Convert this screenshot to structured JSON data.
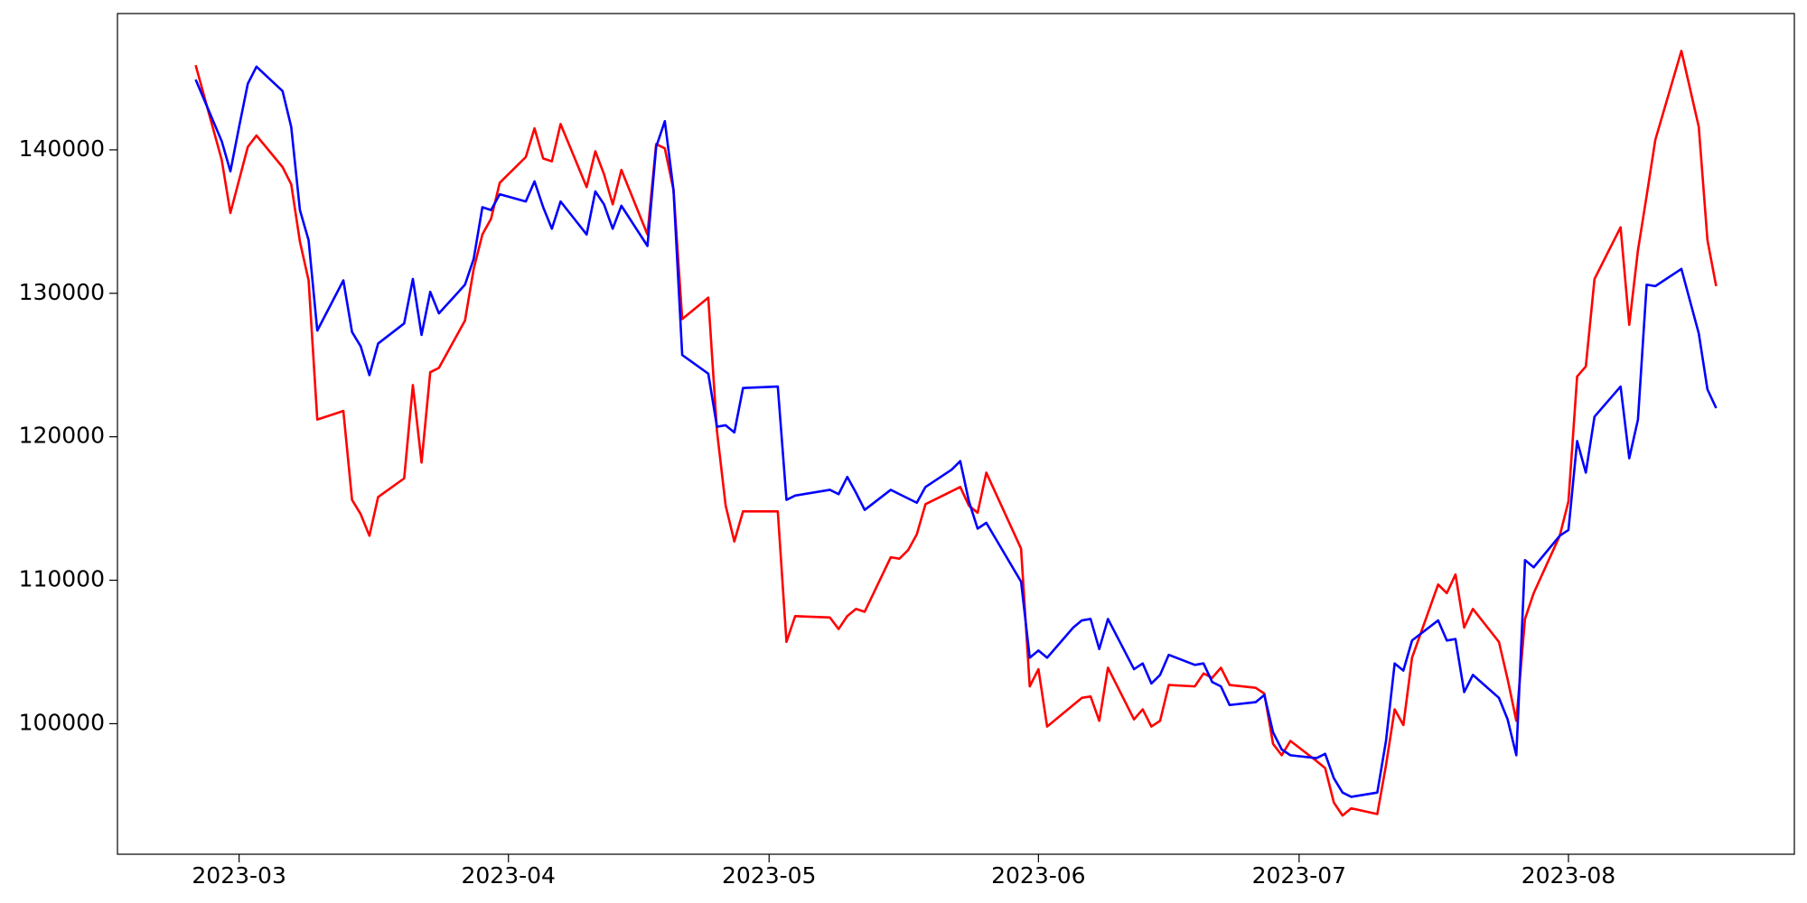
{
  "chart_data": {
    "type": "line",
    "x": [
      "2023-02-24",
      "2023-02-27",
      "2023-02-28",
      "2023-03-01",
      "2023-03-02",
      "2023-03-03",
      "2023-03-06",
      "2023-03-07",
      "2023-03-08",
      "2023-03-09",
      "2023-03-10",
      "2023-03-13",
      "2023-03-14",
      "2023-03-15",
      "2023-03-16",
      "2023-03-17",
      "2023-03-20",
      "2023-03-21",
      "2023-03-22",
      "2023-03-23",
      "2023-03-24",
      "2023-03-27",
      "2023-03-28",
      "2023-03-29",
      "2023-03-30",
      "2023-03-31",
      "2023-04-03",
      "2023-04-04",
      "2023-04-05",
      "2023-04-06",
      "2023-04-07",
      "2023-04-10",
      "2023-04-11",
      "2023-04-12",
      "2023-04-13",
      "2023-04-14",
      "2023-04-17",
      "2023-04-18",
      "2023-04-19",
      "2023-04-20",
      "2023-04-21",
      "2023-04-24",
      "2023-04-25",
      "2023-04-26",
      "2023-04-27",
      "2023-04-28",
      "2023-05-02",
      "2023-05-03",
      "2023-05-04",
      "2023-05-08",
      "2023-05-09",
      "2023-05-10",
      "2023-05-11",
      "2023-05-12",
      "2023-05-15",
      "2023-05-16",
      "2023-05-17",
      "2023-05-18",
      "2023-05-19",
      "2023-05-22",
      "2023-05-23",
      "2023-05-24",
      "2023-05-25",
      "2023-05-26",
      "2023-05-30",
      "2023-05-31",
      "2023-06-01",
      "2023-06-02",
      "2023-06-05",
      "2023-06-06",
      "2023-06-07",
      "2023-06-08",
      "2023-06-09",
      "2023-06-12",
      "2023-06-13",
      "2023-06-14",
      "2023-06-15",
      "2023-06-16",
      "2023-06-19",
      "2023-06-20",
      "2023-06-21",
      "2023-06-22",
      "2023-06-23",
      "2023-06-26",
      "2023-06-27",
      "2023-06-28",
      "2023-06-29",
      "2023-06-30",
      "2023-07-03",
      "2023-07-04",
      "2023-07-05",
      "2023-07-06",
      "2023-07-07",
      "2023-07-10",
      "2023-07-11",
      "2023-07-12",
      "2023-07-13",
      "2023-07-14",
      "2023-07-17",
      "2023-07-18",
      "2023-07-19",
      "2023-07-20",
      "2023-07-21",
      "2023-07-24",
      "2023-07-25",
      "2023-07-26",
      "2023-07-27",
      "2023-07-28",
      "2023-07-31",
      "2023-08-01",
      "2023-08-02",
      "2023-08-03",
      "2023-08-04",
      "2023-08-07",
      "2023-08-08",
      "2023-08-09",
      "2023-08-10",
      "2023-08-11",
      "2023-08-14",
      "2023-08-16",
      "2023-08-17",
      "2023-08-18"
    ],
    "series": [
      {
        "color": "#ff0000",
        "values": [
          145900,
          139300,
          135600,
          137900,
          140200,
          141000,
          138800,
          137600,
          133600,
          130900,
          121200,
          121800,
          115600,
          114600,
          113100,
          115800,
          117100,
          123600,
          118200,
          124500,
          124800,
          128100,
          131700,
          134100,
          135200,
          137700,
          139500,
          141500,
          139400,
          139200,
          141800,
          137400,
          139900,
          138300,
          136200,
          138600,
          134100,
          140400,
          140100,
          137200,
          128200,
          129700,
          120400,
          115200,
          112700,
          114800,
          114800,
          105700,
          107500,
          107400,
          106600,
          107500,
          108000,
          107800,
          111600,
          111500,
          112100,
          113200,
          115300,
          116200,
          116500,
          115200,
          114700,
          117500,
          112200,
          102600,
          103800,
          99800,
          101300,
          101800,
          101900,
          100200,
          103900,
          100300,
          101000,
          99800,
          100200,
          102700,
          102600,
          103500,
          103200,
          103900,
          102700,
          102500,
          102100,
          98600,
          97800,
          98800,
          97400,
          96900,
          94500,
          93600,
          94100,
          93700,
          97100,
          101000,
          99900,
          104600,
          109700,
          109100,
          110400,
          106700,
          108000,
          105700,
          103100,
          100200,
          107300,
          109100,
          113100,
          115500,
          124200,
          124900,
          131000,
          134600,
          127800,
          133000,
          136800,
          140700,
          146900,
          141600,
          133700,
          130500
        ]
      },
      {
        "color": "#0000ff",
        "values": [
          144900,
          140600,
          138500,
          141600,
          144600,
          145800,
          144100,
          141600,
          135800,
          133700,
          127400,
          130900,
          127300,
          126300,
          124300,
          126500,
          127900,
          131000,
          127100,
          130100,
          128600,
          130600,
          132400,
          136000,
          135800,
          136900,
          136400,
          137800,
          136000,
          134500,
          136400,
          134100,
          137100,
          136200,
          134500,
          136100,
          133300,
          140200,
          142000,
          137200,
          125700,
          124400,
          120700,
          120800,
          120300,
          123400,
          123500,
          115600,
          115900,
          116300,
          116000,
          117200,
          116100,
          114900,
          116300,
          116000,
          115700,
          115400,
          116500,
          117700,
          118300,
          115500,
          113600,
          114000,
          109900,
          104600,
          105100,
          104600,
          106700,
          107200,
          107300,
          105200,
          107300,
          103800,
          104200,
          102800,
          103400,
          104800,
          104100,
          104200,
          102900,
          102600,
          101300,
          101500,
          102000,
          99400,
          98200,
          97800,
          97600,
          97900,
          96200,
          95200,
          94900,
          95200,
          98800,
          104200,
          103700,
          105800,
          107200,
          105800,
          105900,
          102200,
          103400,
          101800,
          100300,
          97800,
          111400,
          110900,
          113100,
          113500,
          119700,
          117500,
          121400,
          123500,
          118500,
          121200,
          130600,
          130500,
          131700,
          127200,
          123300,
          122000
        ]
      }
    ],
    "xlim": [
      "2023-02-15",
      "2023-08-27"
    ],
    "xticks": [
      {
        "value": "2023-03-01",
        "label": "2023-03"
      },
      {
        "value": "2023-04-01",
        "label": "2023-04"
      },
      {
        "value": "2023-05-01",
        "label": "2023-05"
      },
      {
        "value": "2023-06-01",
        "label": "2023-06"
      },
      {
        "value": "2023-07-01",
        "label": "2023-07"
      },
      {
        "value": "2023-08-01",
        "label": "2023-08"
      }
    ],
    "ylim": [
      90900,
      149500
    ],
    "yticks": [
      100000,
      110000,
      120000,
      130000,
      140000
    ],
    "grid": false
  }
}
